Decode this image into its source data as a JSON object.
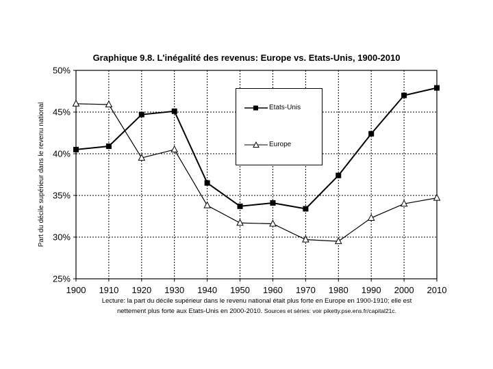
{
  "chart_data": {
    "type": "line",
    "title": "Graphique 9.8. L'inégalité des revenus: Europe vs. Etats-Unis, 1900-2010",
    "ylabel": "Part du décile supérieur dans le revenu national",
    "xlabel": "",
    "x": [
      1900,
      1910,
      1920,
      1930,
      1940,
      1950,
      1960,
      1970,
      1980,
      1990,
      2000,
      2010
    ],
    "x_ticks": [
      "1900",
      "1910",
      "1920",
      "1930",
      "1940",
      "1950",
      "1960",
      "1970",
      "1980",
      "1990",
      "2000",
      "2010"
    ],
    "ylim": [
      0.25,
      0.5
    ],
    "y_ticks": [
      0.25,
      0.3,
      0.35,
      0.4,
      0.45,
      0.5
    ],
    "y_tick_labels": [
      "25%",
      "30%",
      "35%",
      "40%",
      "45%",
      "50%"
    ],
    "grid": true,
    "legend_position": "top-center",
    "series": [
      {
        "name": "Etats-Unis",
        "marker": "filled-square",
        "color": "#000000",
        "values": [
          0.405,
          0.409,
          0.447,
          0.451,
          0.365,
          0.337,
          0.341,
          0.334,
          0.374,
          0.424,
          0.47,
          0.479
        ]
      },
      {
        "name": "Europe",
        "marker": "open-triangle",
        "color": "#000000",
        "values": [
          0.46,
          0.459,
          0.395,
          0.405,
          0.338,
          0.317,
          0.316,
          0.297,
          0.295,
          0.323,
          0.34,
          0.347
        ]
      }
    ]
  },
  "caption": {
    "main": "Lecture: la part du décile supérieur dans le revenu national était plus forte en Europe en 1900-1910; elle est nettement plus forte aux Etats-Unis en 2000-2010.",
    "sources": "Sources et séries: voir piketty.pse.ens.fr/capital21c."
  }
}
